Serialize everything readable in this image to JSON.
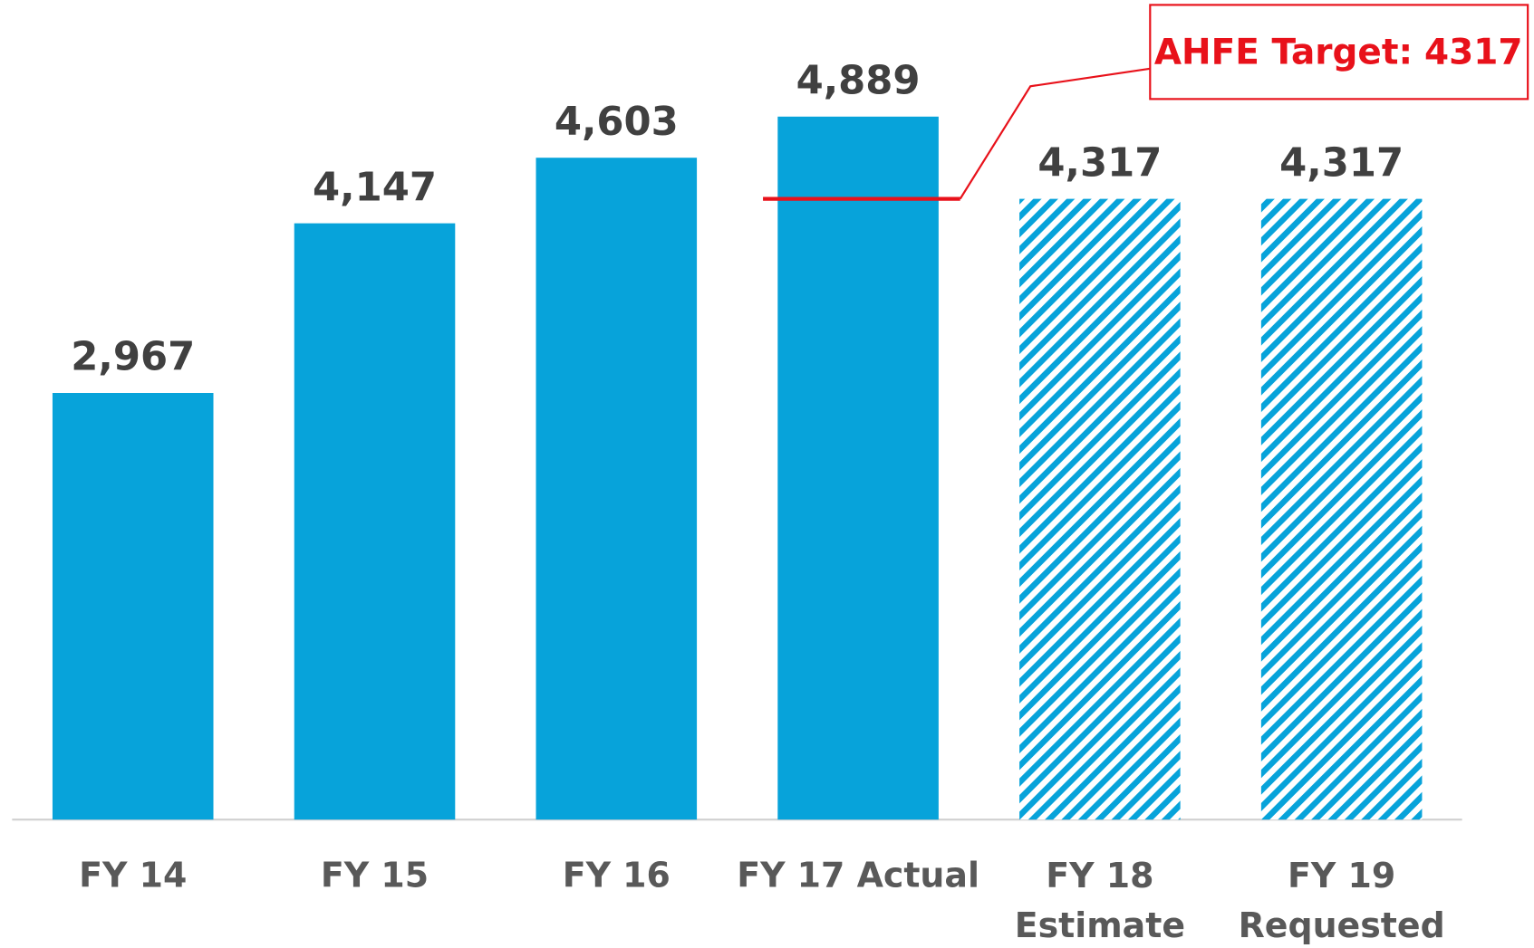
{
  "chart_data": {
    "type": "bar",
    "categories": [
      "FY 14",
      "FY 15",
      "FY 16",
      "FY 17 Actual",
      "FY 18\nEstimate",
      "FY 19\nRequested"
    ],
    "values": [
      2967,
      4147,
      4603,
      4889,
      4317,
      4317
    ],
    "value_labels": [
      "2,967",
      "4,147",
      "4,603",
      "4,889",
      "4,317",
      "4,317"
    ],
    "hatched": [
      false,
      false,
      false,
      false,
      true,
      true
    ],
    "color": "#07a3da",
    "ylim": [
      0,
      5700
    ],
    "annotation": {
      "label": "AHFE Target:",
      "value": 4317,
      "color": "#e8111a"
    }
  }
}
